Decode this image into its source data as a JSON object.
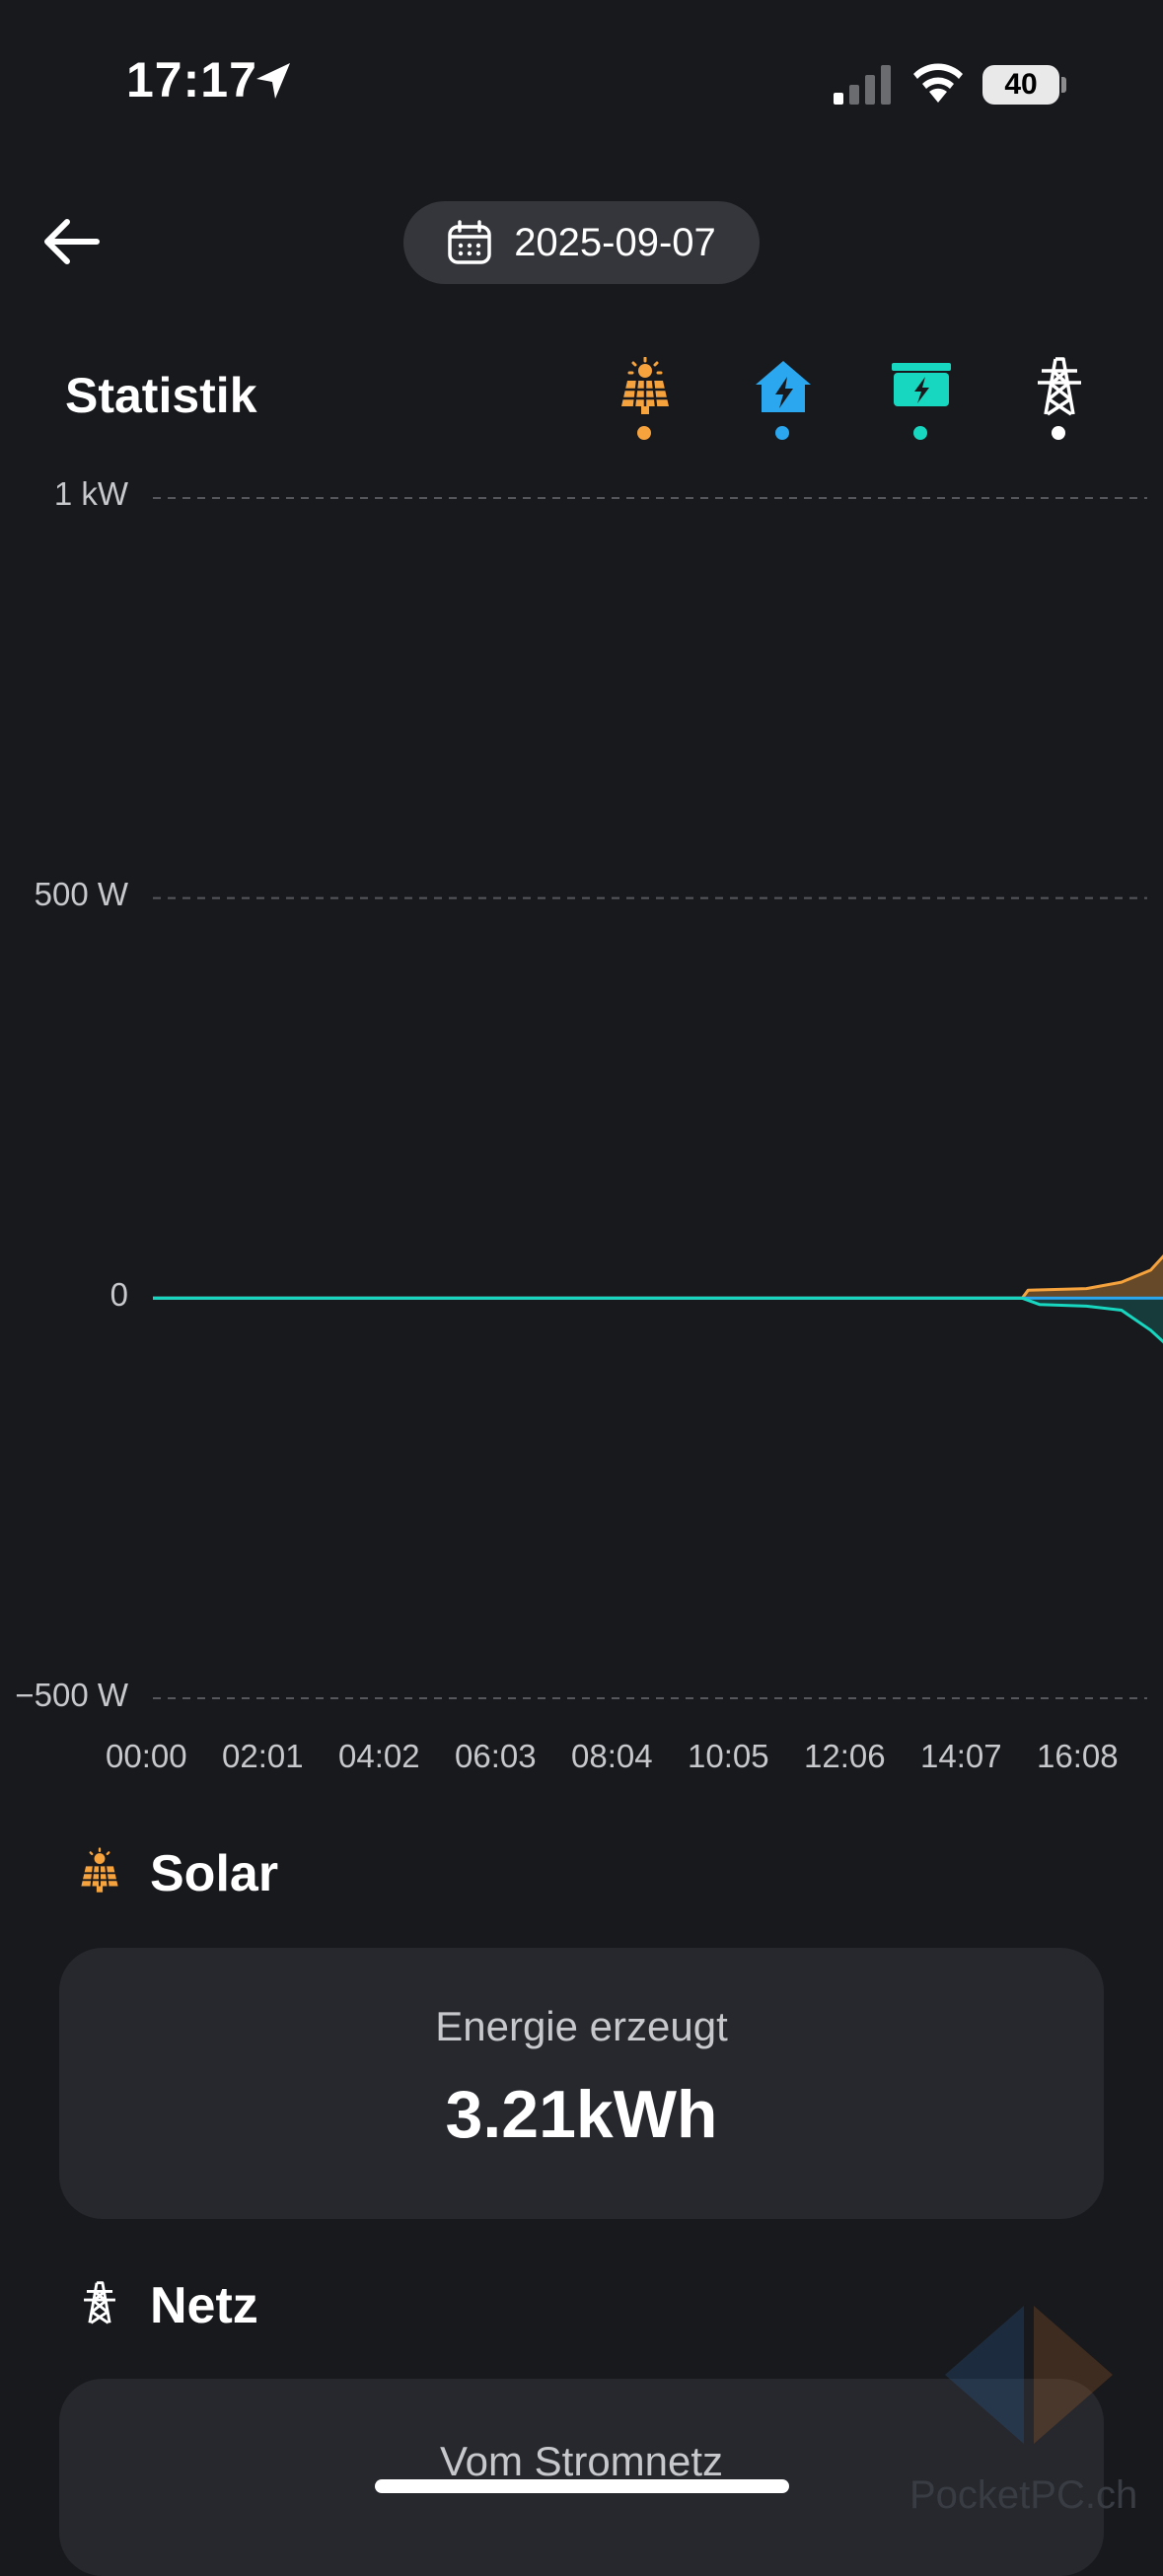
{
  "status_bar": {
    "time": "17:17",
    "battery": "40",
    "icons": [
      "location-arrow-icon",
      "cellular-signal-icon",
      "wifi-icon",
      "battery-icon"
    ]
  },
  "header": {
    "back_icon": "arrow-left-icon",
    "date": "2025-09-07",
    "calendar_icon": "calendar-icon"
  },
  "statistics": {
    "title": "Statistik",
    "legend": [
      {
        "icon": "solar-panel-icon",
        "color": "#f6a33e"
      },
      {
        "icon": "house-bolt-icon",
        "color": "#2aa7ee"
      },
      {
        "icon": "battery-bolt-icon",
        "color": "#18d7c0"
      },
      {
        "icon": "power-pylon-icon",
        "color": "#ffffff"
      }
    ]
  },
  "chart_data": {
    "type": "line",
    "x_ticks": [
      "00:00",
      "02:01",
      "04:02",
      "06:03",
      "08:04",
      "10:05",
      "12:06",
      "14:07",
      "16:08"
    ],
    "y_ticks": [
      "1 kW",
      "500 W",
      "0",
      "−500 W"
    ],
    "ylim": [
      -500,
      1000
    ],
    "xlim": [
      0,
      17.5
    ],
    "grid": true,
    "series": [
      {
        "color": "#f6a33e",
        "fill": "area",
        "points": [
          [
            0,
            0
          ],
          [
            7.45,
            0
          ],
          [
            7.5,
            10
          ],
          [
            8.0,
            12
          ],
          [
            8.3,
            20
          ],
          [
            8.55,
            35
          ],
          [
            8.8,
            75
          ],
          [
            9.0,
            100
          ],
          [
            9.3,
            130
          ],
          [
            9.6,
            170
          ],
          [
            9.9,
            230
          ],
          [
            10.2,
            290
          ],
          [
            10.5,
            350
          ],
          [
            10.8,
            400
          ],
          [
            11.1,
            440
          ],
          [
            11.4,
            470
          ],
          [
            11.6,
            500
          ],
          [
            11.7,
            75
          ],
          [
            11.75,
            490
          ],
          [
            12.2,
            510
          ],
          [
            12.6,
            530
          ],
          [
            13.0,
            545
          ],
          [
            13.3,
            550
          ],
          [
            13.6,
            555
          ],
          [
            13.9,
            550
          ],
          [
            14.1,
            555
          ],
          [
            14.2,
            480
          ],
          [
            14.35,
            520
          ],
          [
            14.7,
            500
          ],
          [
            14.9,
            420
          ],
          [
            15.0,
            480
          ],
          [
            15.4,
            465
          ],
          [
            15.8,
            440
          ],
          [
            16.2,
            390
          ],
          [
            16.6,
            350
          ],
          [
            16.9,
            320
          ],
          [
            17.0,
            210
          ],
          [
            17.05,
            330
          ],
          [
            17.2,
            340
          ],
          [
            17.3,
            320
          ]
        ]
      },
      {
        "color": "#2aa7ee",
        "fill": "area",
        "points": [
          [
            0,
            0
          ],
          [
            8.95,
            0
          ],
          [
            8.97,
            200
          ],
          [
            9.25,
            200
          ],
          [
            9.27,
            0
          ],
          [
            9.55,
            0
          ],
          [
            9.6,
            140
          ],
          [
            9.9,
            150
          ],
          [
            10.0,
            190
          ],
          [
            10.3,
            200
          ],
          [
            10.6,
            210
          ],
          [
            10.9,
            200
          ],
          [
            11.2,
            215
          ],
          [
            11.5,
            250
          ],
          [
            11.7,
            265
          ],
          [
            11.72,
            110
          ],
          [
            12.0,
            100
          ],
          [
            12.3,
            105
          ],
          [
            12.5,
            95
          ],
          [
            12.55,
            170
          ],
          [
            12.8,
            110
          ],
          [
            13.1,
            100
          ],
          [
            13.3,
            160
          ],
          [
            13.5,
            110
          ],
          [
            13.9,
            105
          ],
          [
            14.2,
            120
          ],
          [
            14.4,
            95
          ],
          [
            14.7,
            110
          ],
          [
            15.0,
            100
          ],
          [
            15.3,
            115
          ],
          [
            15.6,
            110
          ],
          [
            15.9,
            120
          ],
          [
            16.2,
            110
          ],
          [
            16.5,
            100
          ],
          [
            16.7,
            150
          ],
          [
            16.85,
            200
          ],
          [
            17.0,
            210
          ],
          [
            17.15,
            200
          ],
          [
            17.25,
            180
          ],
          [
            17.3,
            160
          ]
        ]
      },
      {
        "color": "#18d7c0",
        "fill": "area",
        "points": [
          [
            0,
            0
          ],
          [
            7.45,
            0
          ],
          [
            7.6,
            -8
          ],
          [
            8.0,
            -10
          ],
          [
            8.3,
            -15
          ],
          [
            8.55,
            -40
          ],
          [
            8.7,
            -60
          ],
          [
            8.85,
            -80
          ],
          [
            8.95,
            -100
          ],
          [
            9.0,
            -10
          ],
          [
            9.2,
            -30
          ],
          [
            9.35,
            -140
          ],
          [
            9.5,
            -160
          ],
          [
            9.65,
            -50
          ],
          [
            9.9,
            -70
          ],
          [
            10.1,
            -60
          ],
          [
            10.3,
            -80
          ],
          [
            10.6,
            -130
          ],
          [
            10.9,
            -160
          ],
          [
            11.2,
            -180
          ],
          [
            11.45,
            -210
          ],
          [
            11.6,
            -300
          ],
          [
            11.75,
            -340
          ],
          [
            12.0,
            -370
          ],
          [
            12.3,
            -400
          ],
          [
            12.6,
            -380
          ],
          [
            12.9,
            -400
          ],
          [
            13.2,
            -410
          ],
          [
            13.5,
            -430
          ],
          [
            13.8,
            -430
          ],
          [
            14.0,
            -420
          ],
          [
            14.3,
            -410
          ],
          [
            14.6,
            -400
          ],
          [
            14.9,
            -380
          ],
          [
            15.0,
            -360
          ],
          [
            15.05,
            -15
          ],
          [
            15.1,
            -340
          ],
          [
            15.3,
            -350
          ],
          [
            15.6,
            -320
          ],
          [
            15.9,
            -290
          ],
          [
            16.2,
            -280
          ],
          [
            16.5,
            -240
          ],
          [
            16.7,
            -200
          ],
          [
            16.9,
            -140
          ],
          [
            17.1,
            -110
          ],
          [
            17.2,
            -150
          ],
          [
            17.3,
            -150
          ]
        ]
      }
    ]
  },
  "solar": {
    "icon": "solar-panel-icon",
    "title": "Solar",
    "label": "Energie erzeugt",
    "value": "3.21kWh"
  },
  "grid_section": {
    "icon": "power-pylon-icon",
    "title": "Netz",
    "label": "Vom Stromnetz"
  },
  "watermark": "PocketPC.ch"
}
